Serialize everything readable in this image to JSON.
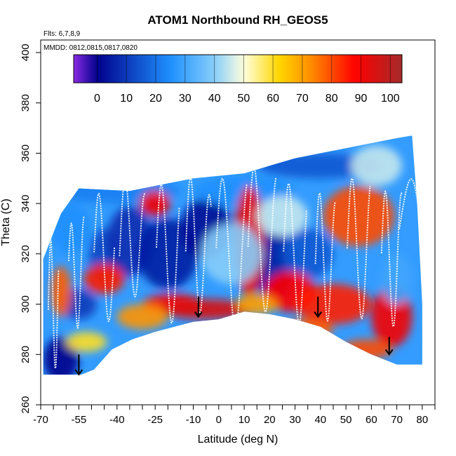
{
  "chart_data": {
    "type": "heatmap",
    "title": "ATOM1 Northbound RH_GEOS5",
    "subtitle_flights": "Flts: 6,7,8,9",
    "subtitle_dates": "MMDD: 0812,0815,0817,0820",
    "xlabel": "Latitude (deg N)",
    "ylabel": "Theta (C)",
    "xlim": [
      -70,
      85
    ],
    "ylim": [
      260,
      405
    ],
    "x_ticks": [
      -70,
      -55,
      -40,
      -25,
      -10,
      0,
      10,
      20,
      30,
      40,
      50,
      60,
      70,
      80
    ],
    "x_tick_labels": [
      "-70",
      "-55",
      "-40",
      "-25",
      "-10",
      "0",
      "10",
      "20",
      "30",
      "40",
      "50",
      "60",
      "70",
      "80"
    ],
    "x_minor_ticks": [
      -65,
      -60,
      -50,
      -45,
      -35,
      -30,
      -20,
      -15,
      -5,
      5,
      15,
      25,
      35,
      45,
      55,
      65,
      75,
      85
    ],
    "y_ticks": [
      260,
      280,
      300,
      320,
      340,
      360,
      380,
      400
    ],
    "y_tick_labels": [
      "260",
      "280",
      "300",
      "320",
      "340",
      "360",
      "380",
      "400"
    ],
    "colorbar": {
      "range": [
        -8,
        104
      ],
      "tick_values": [
        0,
        10,
        20,
        30,
        40,
        50,
        60,
        70,
        80,
        90,
        100
      ],
      "tick_labels": [
        "0",
        "10",
        "20",
        "30",
        "40",
        "50",
        "60",
        "70",
        "80",
        "90",
        "100"
      ],
      "colors": [
        "#8a2be2",
        "#00008b",
        "#1e90ff",
        "#87cefa",
        "#ffffe0",
        "#ffd700",
        "#ff8c00",
        "#ff0000",
        "#a52a2a"
      ],
      "stops": [
        -8,
        0,
        25,
        40,
        50,
        62,
        73,
        88,
        104
      ]
    },
    "envelope": {
      "bottom": [
        [
          -69,
          272
        ],
        [
          -54,
          272
        ],
        [
          -49,
          274
        ],
        [
          -42,
          282
        ],
        [
          -34,
          286
        ],
        [
          -25,
          289
        ],
        [
          -10,
          293
        ],
        [
          0,
          294
        ],
        [
          10,
          297
        ],
        [
          20,
          296
        ],
        [
          30,
          294
        ],
        [
          40,
          291
        ],
        [
          50,
          285
        ],
        [
          60,
          280
        ],
        [
          70,
          276
        ],
        [
          80,
          276
        ]
      ],
      "top": [
        [
          -69,
          318
        ],
        [
          -62,
          336
        ],
        [
          -55,
          346
        ],
        [
          -35,
          345
        ],
        [
          -20,
          348
        ],
        [
          -10,
          350
        ],
        [
          10,
          352
        ],
        [
          20,
          355
        ],
        [
          30,
          358
        ],
        [
          40,
          360
        ],
        [
          50,
          362
        ],
        [
          60,
          364
        ],
        [
          70,
          366
        ],
        [
          76,
          367
        ],
        [
          78,
          340
        ],
        [
          80,
          300
        ]
      ]
    },
    "rh_field": [
      [
        -62,
        278,
        0,
        7,
        9,
        8
      ],
      [
        -55,
        300,
        10,
        7,
        6,
        14
      ],
      [
        -45,
        318,
        12,
        6,
        12,
        12
      ],
      [
        -35,
        325,
        8,
        9,
        14,
        15
      ],
      [
        -20,
        320,
        5,
        12,
        14,
        16
      ],
      [
        -5,
        330,
        2,
        10,
        12,
        15
      ],
      [
        22,
        315,
        5,
        8,
        14,
        12
      ],
      [
        35,
        320,
        15,
        10,
        10,
        12
      ],
      [
        -40,
        345,
        22,
        25,
        5,
        8
      ],
      [
        10,
        345,
        25,
        20,
        6,
        8
      ],
      [
        40,
        355,
        15,
        25,
        5,
        8
      ],
      [
        -58,
        330,
        25,
        8,
        10,
        20
      ],
      [
        -45,
        310,
        85,
        8,
        6,
        6
      ],
      [
        -25,
        340,
        90,
        6,
        5,
        6
      ],
      [
        -18,
        300,
        88,
        12,
        4,
        6
      ],
      [
        -5,
        298,
        95,
        18,
        4,
        5
      ],
      [
        12,
        325,
        92,
        6,
        22,
        8
      ],
      [
        28,
        305,
        88,
        10,
        8,
        8
      ],
      [
        45,
        300,
        85,
        15,
        8,
        8
      ],
      [
        68,
        295,
        90,
        8,
        12,
        10
      ],
      [
        55,
        335,
        80,
        14,
        12,
        10
      ],
      [
        -62,
        305,
        78,
        4,
        10,
        15
      ],
      [
        -52,
        285,
        60,
        8,
        4,
        6
      ],
      [
        -30,
        295,
        72,
        10,
        5,
        6
      ],
      [
        15,
        300,
        70,
        8,
        4,
        6
      ],
      [
        35,
        290,
        78,
        10,
        4,
        6
      ],
      [
        58,
        282,
        80,
        10,
        4,
        5
      ],
      [
        5,
        320,
        40,
        12,
        12,
        10
      ],
      [
        25,
        335,
        45,
        10,
        8,
        8
      ],
      [
        62,
        355,
        45,
        10,
        8,
        8
      ],
      [
        70,
        310,
        30,
        6,
        10,
        12
      ]
    ],
    "flight_tracks": [
      [
        -65,
        300,
        4,
        2.2,
        4
      ],
      [
        -56,
        312,
        6,
        2.4,
        6
      ],
      [
        -45,
        318,
        8,
        2.0,
        5
      ],
      [
        -34,
        325,
        10,
        2.6,
        7
      ],
      [
        -20,
        320,
        9,
        2.2,
        6
      ],
      [
        -8,
        322,
        10,
        2.8,
        7
      ],
      [
        5,
        320,
        12,
        2.4,
        8
      ],
      [
        17,
        325,
        11,
        2.5,
        8
      ],
      [
        30,
        320,
        9,
        2.2,
        6
      ],
      [
        42,
        318,
        8,
        2.6,
        5
      ],
      [
        55,
        322,
        9,
        2.4,
        6
      ],
      [
        68,
        318,
        8,
        2.6,
        5
      ],
      [
        77,
        330,
        12,
        1.5,
        4
      ]
    ],
    "arrows": [
      [
        -55,
        280,
        272
      ],
      [
        -8,
        303,
        295
      ],
      [
        39,
        303,
        295
      ],
      [
        67,
        287,
        280
      ]
    ]
  }
}
